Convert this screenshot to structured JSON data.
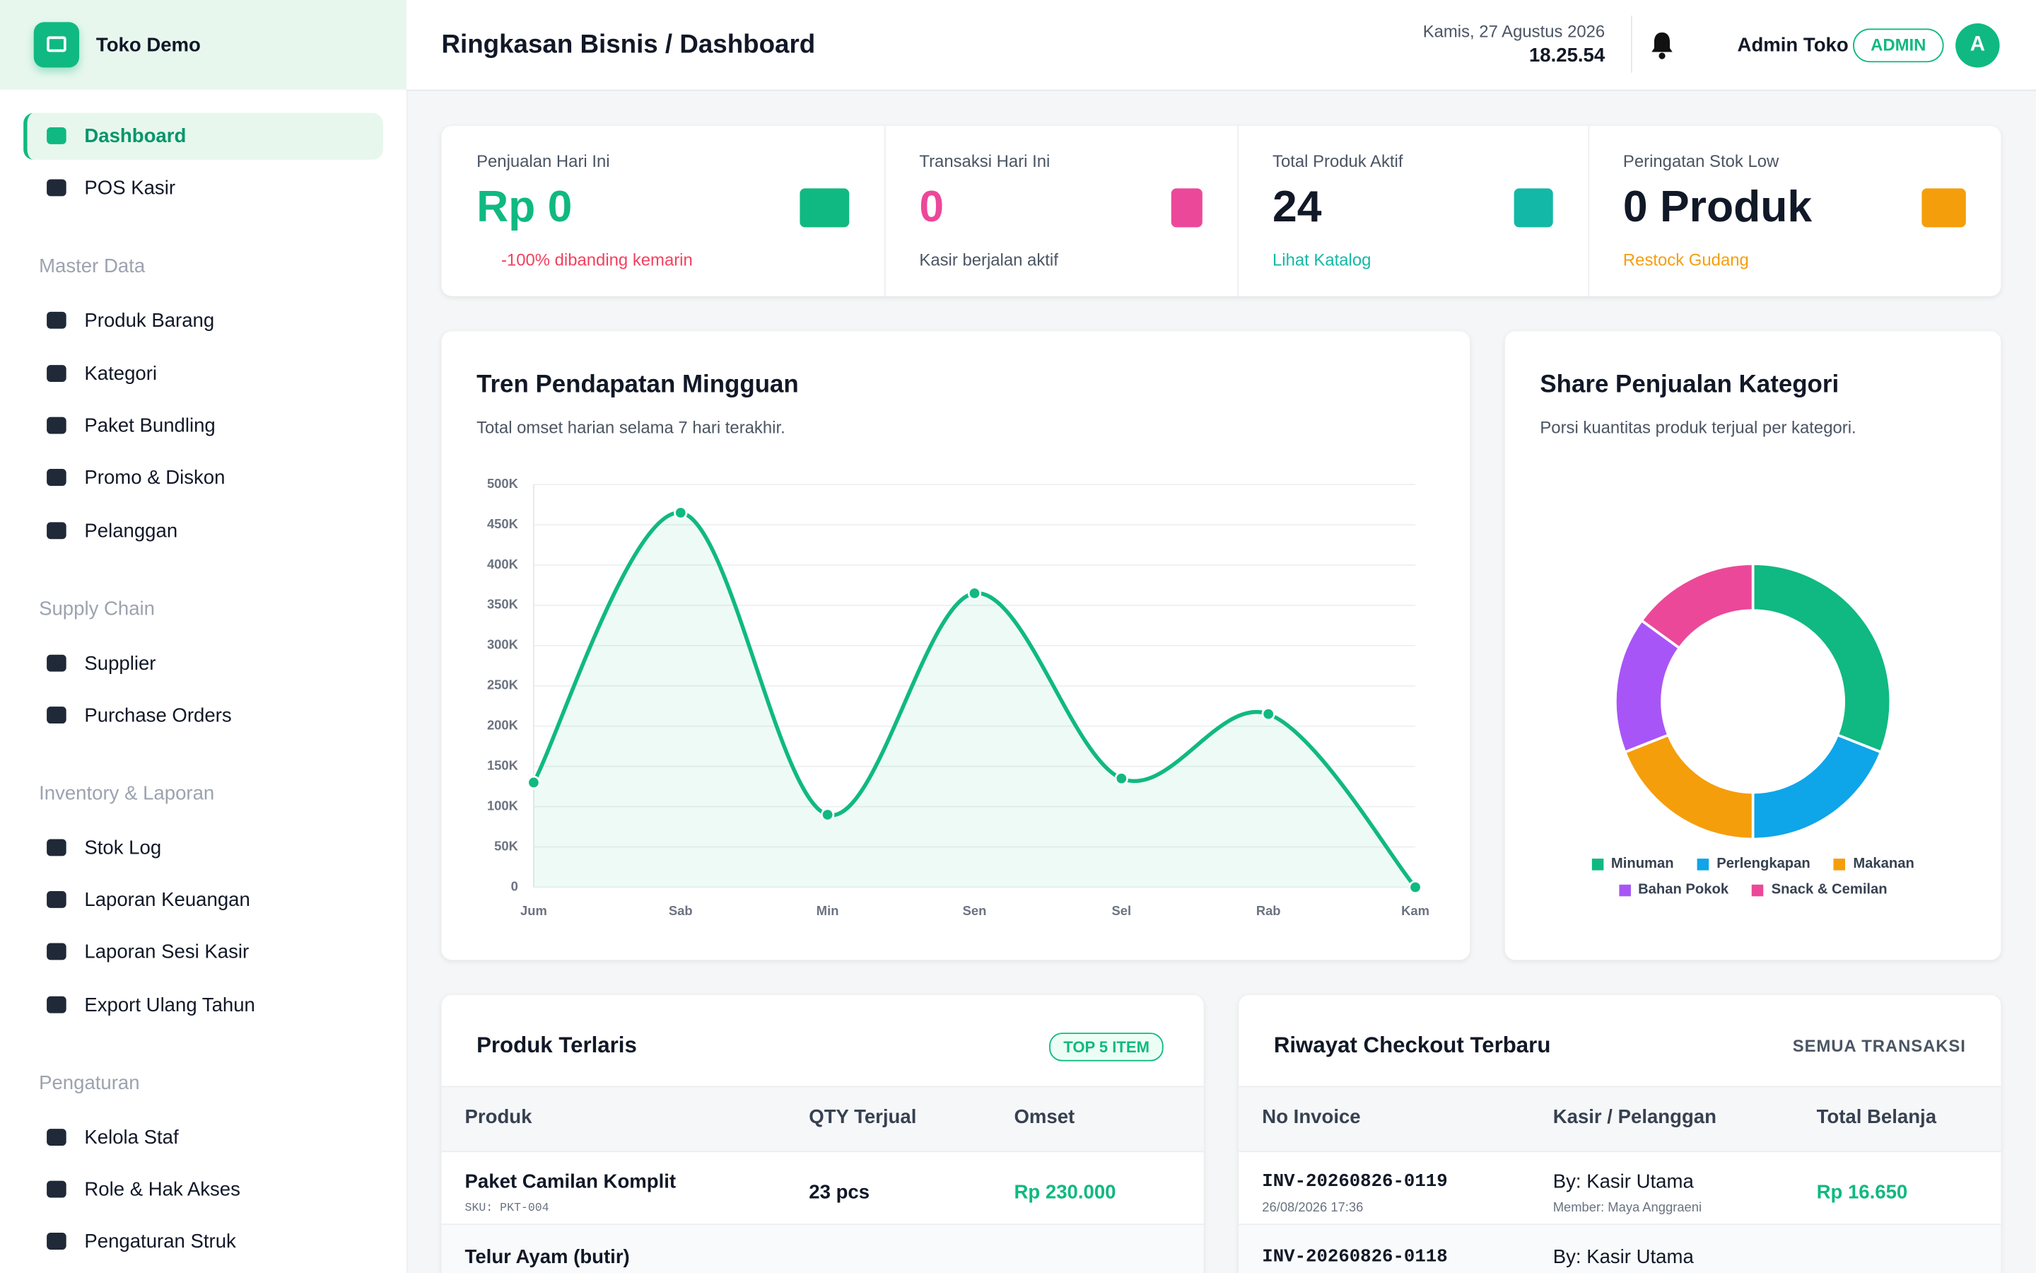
{
  "sidebar": {
    "brand": "Toko Demo",
    "items": [
      "Dashboard",
      "POS Kasir"
    ],
    "sections": [
      {
        "title": "Master Data",
        "items": [
          "Produk Barang",
          "Kategori",
          "Paket Bundling",
          "Promo & Diskon",
          "Pelanggan"
        ]
      },
      {
        "title": "Supply Chain",
        "items": [
          "Supplier",
          "Purchase Orders"
        ]
      },
      {
        "title": "Inventory & Laporan",
        "items": [
          "Stok Log",
          "Laporan Keuangan",
          "Laporan Sesi Kasir",
          "Export Ulang Tahun"
        ]
      },
      {
        "title": "Pengaturan",
        "items": [
          "Kelola Staf",
          "Role & Hak Akses",
          "Pengaturan Struk"
        ]
      }
    ]
  },
  "header": {
    "title": "Ringkasan Bisnis / Dashboard",
    "date": "Kamis, 27 Agustus 2026",
    "time": "18.25.54",
    "user": "Admin Toko",
    "role": "ADMIN",
    "avatar": "A"
  },
  "stats": [
    {
      "label": "Penjualan Hari Ini",
      "value": "Rp 0",
      "note": "-100% dibanding kemarin"
    },
    {
      "label": "Transaksi Hari Ini",
      "value": "0",
      "note": "Kasir berjalan aktif"
    },
    {
      "label": "Total Produk Aktif",
      "value": "24",
      "note": "Lihat Katalog"
    },
    {
      "label": "Peringatan Stok Low",
      "value": "0 Produk",
      "note": "Restock Gudang"
    }
  ],
  "chart_data": [
    {
      "type": "line",
      "title": "Tren Pendapatan Mingguan",
      "subtitle": "Total omset harian selama 7 hari terakhir.",
      "categories": [
        "Jum",
        "Sab",
        "Min",
        "Sen",
        "Sel",
        "Rab",
        "Kam"
      ],
      "values": [
        130000,
        465000,
        90000,
        365000,
        135000,
        215000,
        0
      ],
      "color": "#10b981",
      "ylim": [
        0,
        500000
      ],
      "yticks": [
        {
          "value": 0,
          "label": "0"
        },
        {
          "value": 50000,
          "label": "50K"
        },
        {
          "value": 100000,
          "label": "100K"
        },
        {
          "value": 150000,
          "label": "150K"
        },
        {
          "value": 200000,
          "label": "200K"
        },
        {
          "value": 250000,
          "label": "250K"
        },
        {
          "value": 300000,
          "label": "300K"
        },
        {
          "value": 350000,
          "label": "350K"
        },
        {
          "value": 400000,
          "label": "400K"
        },
        {
          "value": 450000,
          "label": "450K"
        },
        {
          "value": 500000,
          "label": "500K"
        }
      ],
      "grid": true
    },
    {
      "type": "pie",
      "title": "Share Penjualan Kategori",
      "subtitle": "Porsi kuantitas produk terjual per kategori.",
      "categories": [
        "Minuman",
        "Perlengkapan",
        "Makanan",
        "Bahan Pokok",
        "Snack & Cemilan"
      ],
      "values": [
        31,
        19,
        19,
        16,
        15
      ],
      "colors": [
        "#10b981",
        "#0ea5e9",
        "#f59e0b",
        "#a855f7",
        "#ec4899"
      ],
      "legend": "bottom"
    }
  ],
  "top_products": {
    "title": "Produk Terlaris",
    "badge": "TOP 5 ITEM",
    "columns": [
      "Produk",
      "QTY Terjual",
      "Omset"
    ],
    "rows": [
      {
        "name": "Paket Camilan Komplit",
        "sku": "SKU: PKT-004",
        "qty": "23 pcs",
        "omset": "Rp 230.000"
      },
      {
        "name": "Telur Ayam (butir)"
      }
    ]
  },
  "checkout": {
    "title": "Riwayat Checkout Terbaru",
    "link": "SEMUA TRANSAKSI",
    "columns": [
      "No Invoice",
      "Kasir / Pelanggan",
      "Total Belanja"
    ],
    "rows": [
      {
        "invoice": "INV-20260826-0119",
        "time": "26/08/2026 17:36",
        "kasir": "By: Kasir Utama",
        "member": "Member: Maya Anggraeni",
        "total": "Rp 16.650"
      },
      {
        "invoice": "INV-20260826-0118",
        "kasir": "By: Kasir Utama"
      }
    ]
  }
}
